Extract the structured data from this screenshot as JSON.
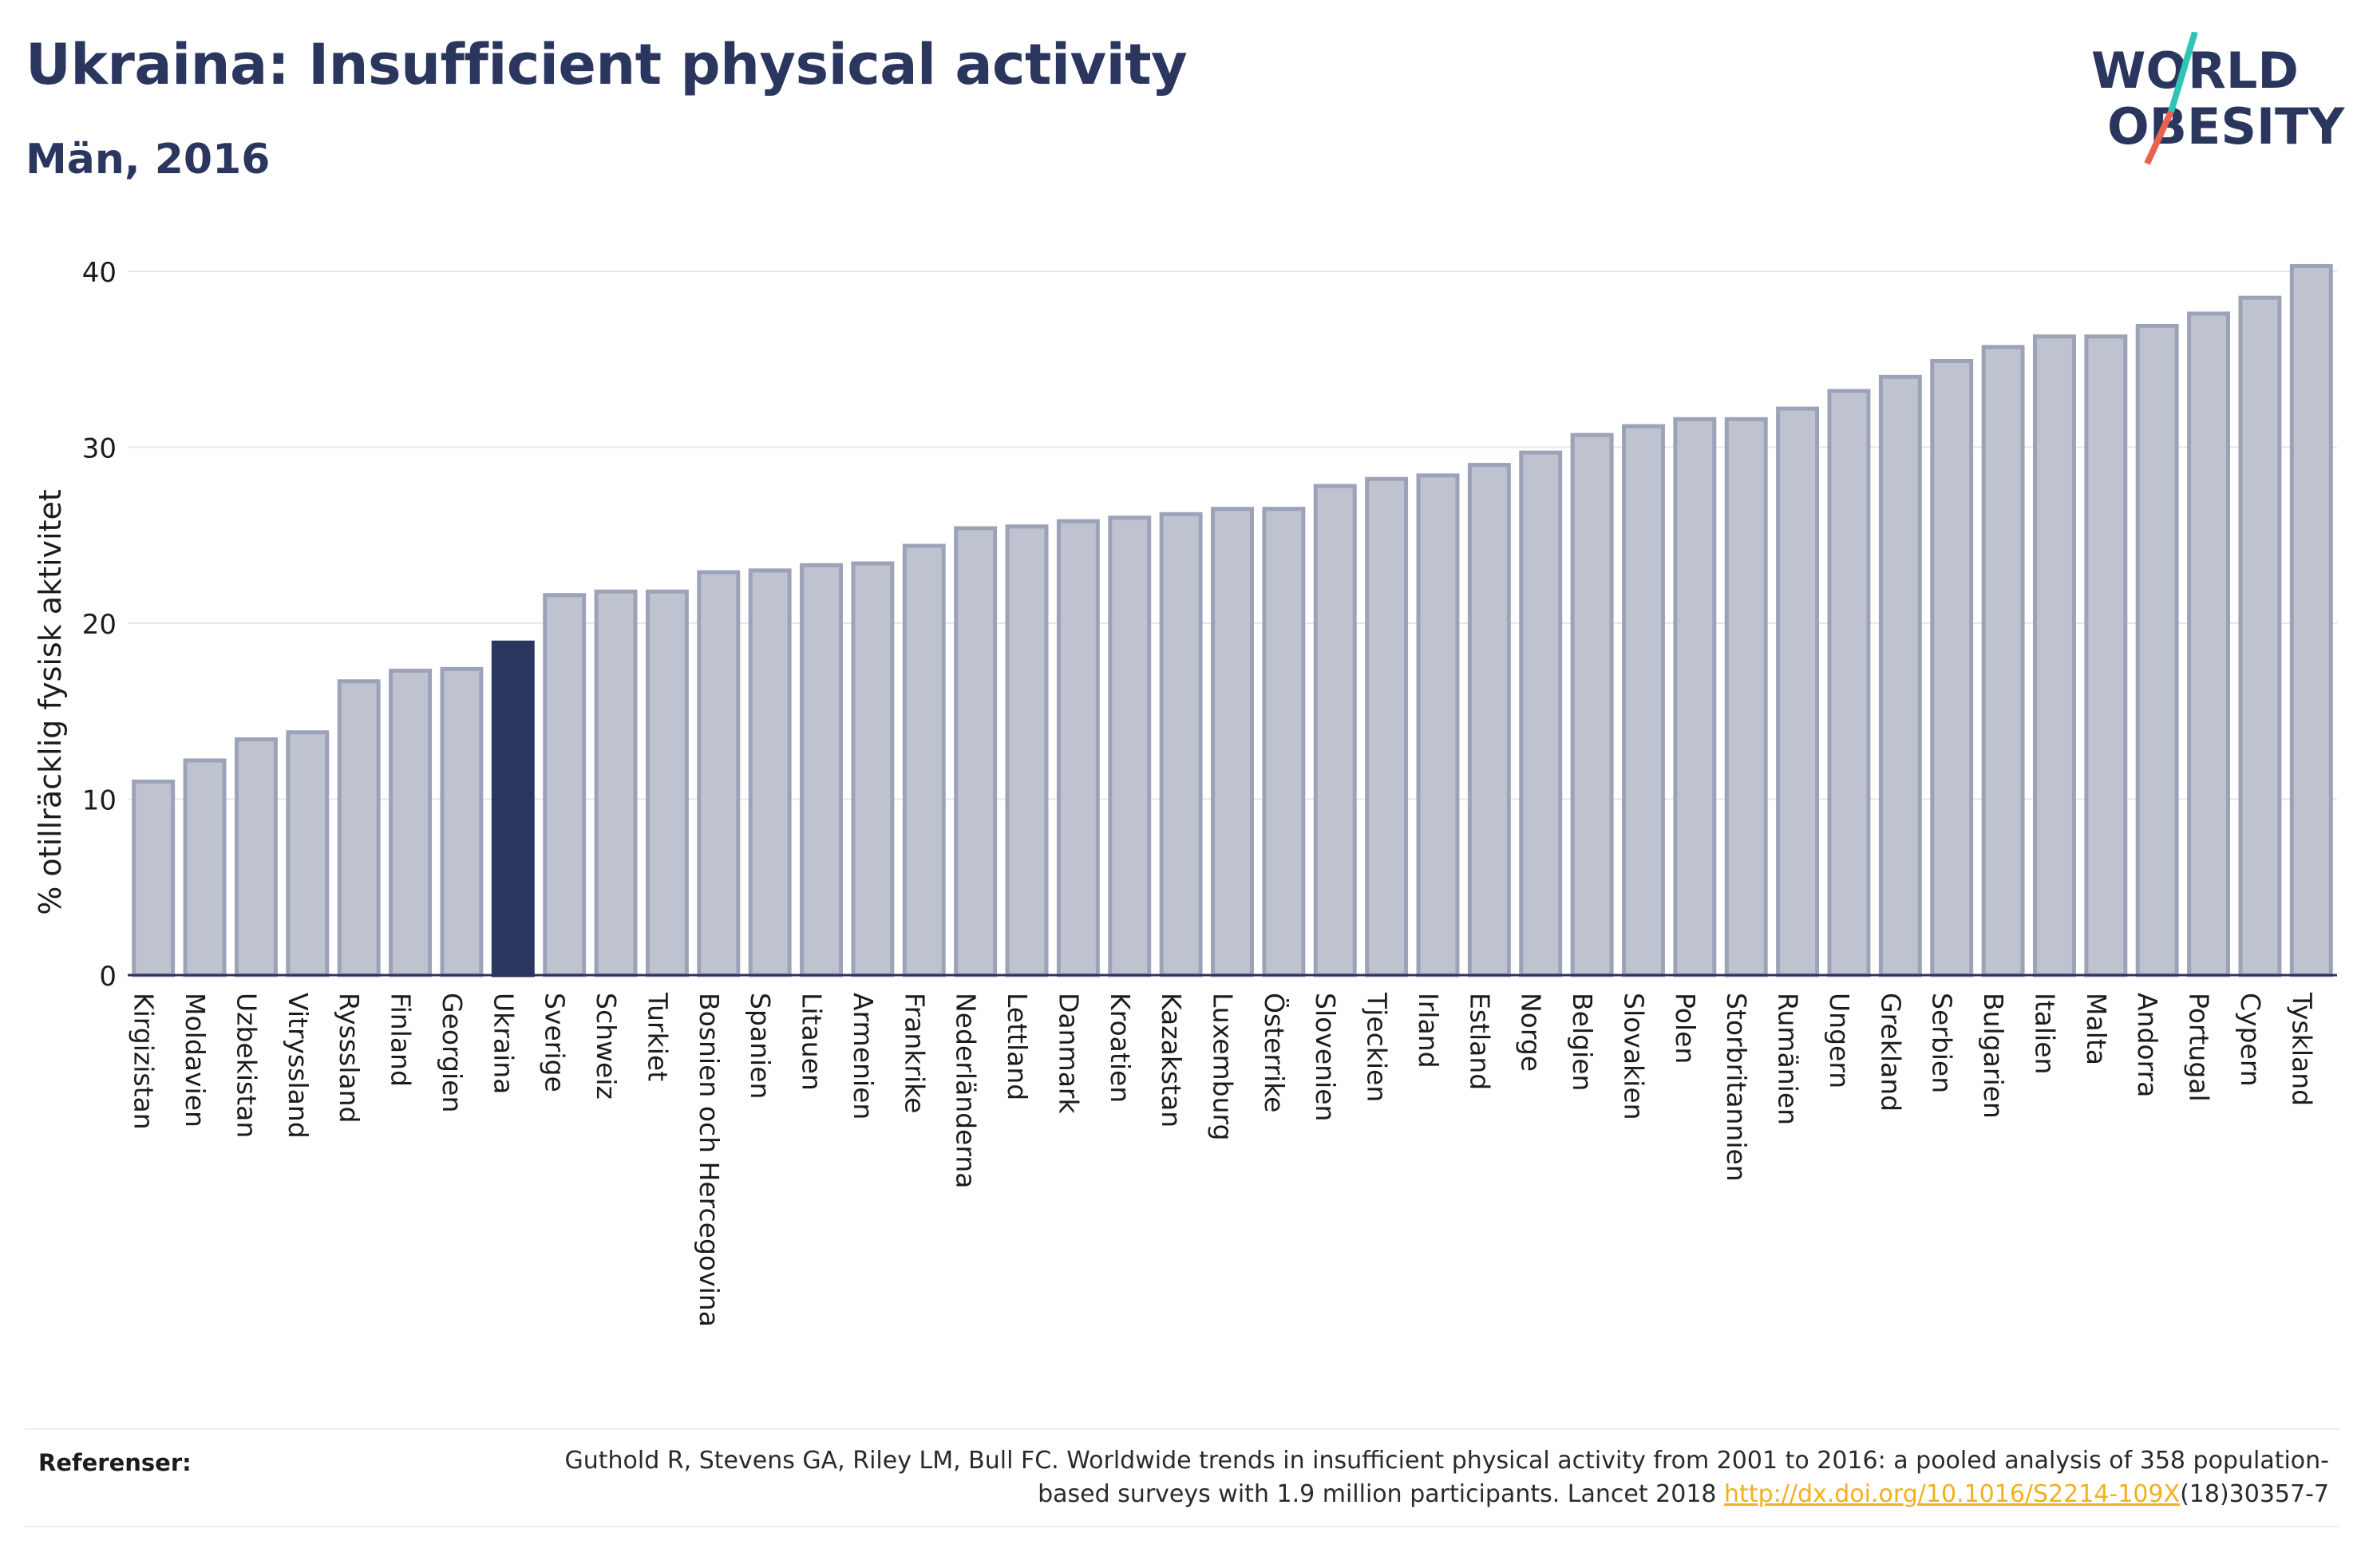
{
  "header": {
    "title": "Ukraina: Insufficient physical activity",
    "subtitle": "Män, 2016"
  },
  "logo": {
    "line1": "WORLD",
    "line2": "OBESITY",
    "accent_colors": [
      "#2ec4b6",
      "#e8624f"
    ]
  },
  "colors": {
    "highlight": "#2b365f",
    "bar_fill": "#bfc3d0",
    "bar_stroke": "#9ca2b8",
    "grid": "#e6e7eb",
    "axis": "#2b365f"
  },
  "chart_data": {
    "type": "bar",
    "title": "",
    "xlabel": "",
    "ylabel": "% otillräcklig fysisk aktivitet",
    "ylim": [
      0,
      41
    ],
    "yticks": [
      0,
      10,
      20,
      30,
      40
    ],
    "grid": true,
    "highlight_category": "Ukraina",
    "categories": [
      "Kirgizistan",
      "Moldavien",
      "Uzbekistan",
      "Vitryssland",
      "Rysssland",
      "Finland",
      "Georgien",
      "Ukraina",
      "Sverige",
      "Schweiz",
      "Turkiet",
      "Bosnien och Hercegovina",
      "Spanien",
      "Litauen",
      "Armenien",
      "Frankrike",
      "Nederländerna",
      "Lettland",
      "Danmark",
      "Kroatien",
      "Kazakstan",
      "Luxemburg",
      "Österrike",
      "Slovenien",
      "Tjeckien",
      "Irland",
      "Estland",
      "Norge",
      "Belgien",
      "Slovakien",
      "Polen",
      "Storbritannien",
      "Rumänien",
      "Ungern",
      "Grekland",
      "Serbien",
      "Bulgarien",
      "Italien",
      "Malta",
      "Andorra",
      "Portugal",
      "Cypern",
      "Tyskland"
    ],
    "values": [
      11.0,
      12.2,
      13.4,
      13.8,
      16.7,
      17.3,
      17.4,
      18.9,
      21.6,
      21.8,
      21.8,
      22.9,
      23.0,
      23.3,
      23.4,
      24.4,
      25.4,
      25.5,
      25.8,
      26.0,
      26.2,
      26.5,
      26.5,
      27.8,
      28.2,
      28.4,
      29.0,
      29.7,
      30.7,
      31.2,
      31.6,
      31.6,
      32.2,
      33.2,
      34.0,
      34.9,
      35.7,
      36.3,
      36.3,
      36.9,
      37.6,
      38.5,
      40.3
    ]
  },
  "references": {
    "label": "Referenser:",
    "text_before": "Guthold R, Stevens GA, Riley LM, Bull FC. Worldwide trends in insufficient physical activity from 2001 to 2016: a pooled analysis of 358 population-based surveys with 1.9 million participants. Lancet 2018 ",
    "link": "http://dx.doi.org/10.1016/S2214-109X",
    "text_after": "(18)30357-7"
  }
}
